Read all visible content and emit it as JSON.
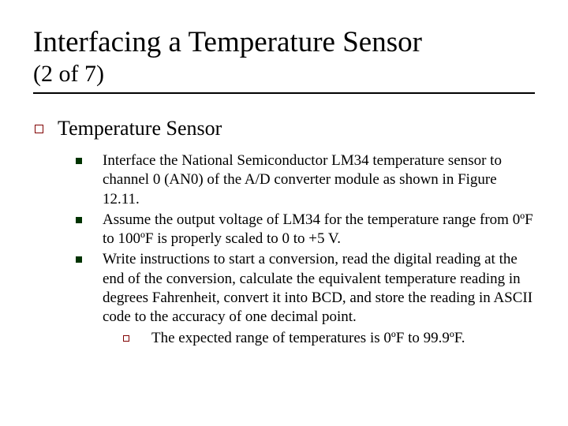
{
  "title": "Interfacing a Temperature Sensor",
  "subtitle": "(2 of 7)",
  "section_heading": "Temperature Sensor",
  "bullets": [
    "Interface the National Semiconductor LM34 temperature sensor to channel 0 (AN0) of the A/D converter module as shown in Figure 12.11.",
    "Assume the output voltage of LM34 for the temperature range from 0ºF to 100ºF  is properly scaled to 0 to +5 V.",
    "Write instructions to start a conversion, read the digital reading at the end of the conversion, calculate the equivalent temperature reading in degrees Fahrenheit, convert it into BCD, and store the reading in ASCII code to the accuracy of one decimal point."
  ],
  "sub_bullet": "The expected range of temperatures is 0ºF to 99.9ºF.",
  "colors": {
    "lvl1_bullet_border": "#800000",
    "lvl2_bullet_fill": "#003300",
    "lvl3_bullet_border": "#800000",
    "rule": "#000000",
    "text": "#000000",
    "background": "#ffffff"
  },
  "fontsizes": {
    "title": 37,
    "subtitle": 30,
    "lvl1": 26,
    "lvl2": 19,
    "lvl3": 19
  }
}
